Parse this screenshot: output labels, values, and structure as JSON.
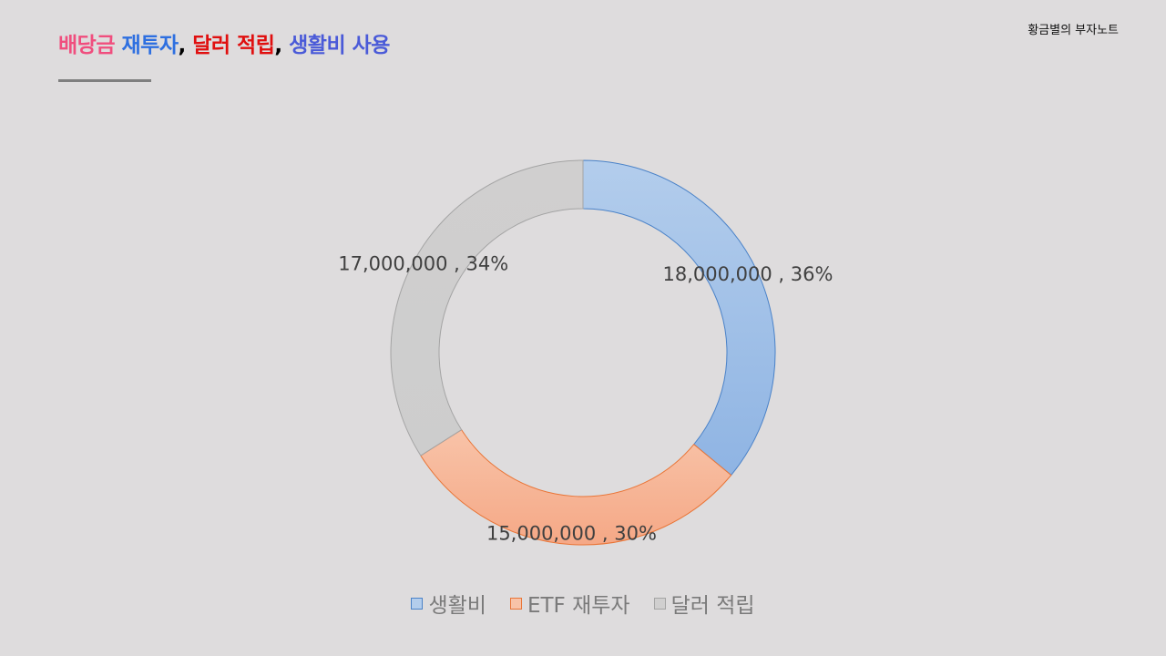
{
  "header": {
    "title_parts": [
      {
        "text": "배당금",
        "color": "#f04e7e"
      },
      {
        "text": " ",
        "color": "#000000"
      },
      {
        "text": "재투자",
        "color": "#2e6fe0"
      },
      {
        "text": ", ",
        "color": "#000000"
      },
      {
        "text": "달러 적립",
        "color": "#e00f0f"
      },
      {
        "text": ", ",
        "color": "#000000"
      },
      {
        "text": "생활비 사용",
        "color": "#4a5ad8"
      }
    ],
    "brand": "황금별의 부자노트"
  },
  "chart_data": {
    "type": "pie",
    "style": "donut",
    "start_angle_deg": 0,
    "direction": "clockwise",
    "legend_position": "bottom",
    "series": [
      {
        "name": "생활비",
        "value": 18000000,
        "percent": 36,
        "label": "18,000,000 , 36%",
        "fill_top": "#b3cdec",
        "fill_bottom": "#8fb4e3",
        "stroke": "#4a82c8"
      },
      {
        "name": "ETF 재투자",
        "value": 15000000,
        "percent": 30,
        "label": "15,000,000 , 30%",
        "fill_top": "#f8c3a8",
        "fill_bottom": "#f5a886",
        "stroke": "#e97537"
      },
      {
        "name": "달러 적립",
        "value": 17000000,
        "percent": 34,
        "label": "17,000,000 , 34%",
        "fill_top": "#d0cfcf",
        "fill_bottom": "#cdcdcd",
        "stroke": "#a4a4a4"
      }
    ]
  }
}
